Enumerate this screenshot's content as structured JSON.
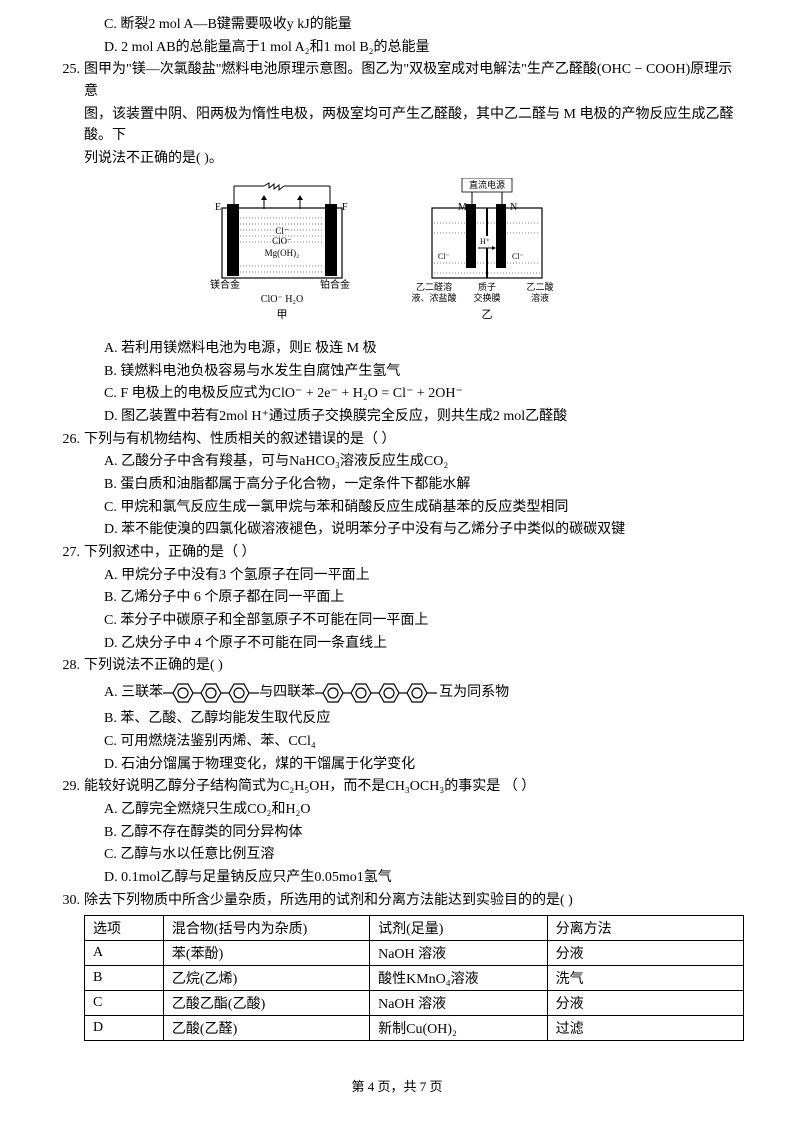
{
  "preQuestion": {
    "optC": "C. 断裂2 mol A—B键需要吸收y kJ的能量",
    "optD": "D. 2 mol AB的总能量高于1 mol A₂和1 mol B₂的总能量"
  },
  "q25": {
    "num": "25.",
    "text1": "图甲为\"镁—次氯酸盐\"燃料电池原理示意图。图乙为\"双极室成对电解法\"生产乙醛酸(OHC − COOH)原理示意",
    "text2": "图，该装置中阴、阳两极为惰性电极，两极室均可产生乙醛酸，其中乙二醛与 M 电极的产物反应生成乙醛酸。下",
    "text3": "列说法不正确的是(    )。",
    "diagram1": {
      "labels": {
        "E": "E",
        "F": "F",
        "Cl": "Cl⁻",
        "ClO": "ClO⁻",
        "MgOH": "Mg(OH)₂",
        "left": "镁合金",
        "right": "铂合金",
        "bottom": "ClO⁻   H₂O",
        "caption": "甲"
      }
    },
    "diagram2": {
      "labels": {
        "top": "直流电源",
        "M": "M",
        "N": "N",
        "H": "H⁺",
        "Cl": "Cl⁻",
        "ClR": "Cl⁻",
        "l1": "乙二醛溶",
        "l1b": "液、浓盐酸",
        "l2": "质子",
        "l2b": "交换膜",
        "l3": "乙二酸",
        "l3b": "溶液",
        "caption": "乙"
      }
    },
    "optA": "A. 若利用镁燃料电池为电源，则E 极连 M 极",
    "optB": "B. 镁燃料电池负极容易与水发生自腐蚀产生氢气",
    "optC": "C. F 电极上的电极反应式为ClO⁻ + 2e⁻ + H₂O = Cl⁻ + 2OH⁻",
    "optD": "D. 图乙装置中若有2mol H⁺通过质子交换膜完全反应，则共生成2 mol乙醛酸"
  },
  "q26": {
    "num": "26.",
    "text": "下列与有机物结构、性质相关的叙述错误的是（  ）",
    "optA": "A. 乙酸分子中含有羧基，可与NaHCO₃溶液反应生成CO₂",
    "optB": "B. 蛋白质和油脂都属于高分子化合物，一定条件下都能水解",
    "optC": "C. 甲烷和氯气反应生成一氯甲烷与苯和硝酸反应生成硝基苯的反应类型相同",
    "optD": "D. 苯不能使溴的四氯化碳溶液褪色，说明苯分子中没有与乙烯分子中类似的碳碳双键"
  },
  "q27": {
    "num": "27.",
    "text": "下列叙述中，正确的是（  ）",
    "optA": "A. 甲烷分子中没有3 个氢原子在同一平面上",
    "optB": "B. 乙烯分子中 6 个原子都在同一平面上",
    "optC": "C. 苯分子中碳原子和全部氢原子不可能在同一平面上",
    "optD": "D. 乙炔分子中 4 个原子不可能在同一条直线上"
  },
  "q28": {
    "num": "28.",
    "text": "下列说法不正确的是(  )",
    "optA_pre": "A. 三联苯",
    "optA_mid": "与四联苯",
    "optA_post": " 互为同系物",
    "optB": "B. 苯、乙酸、乙醇均能发生取代反应",
    "optC": "C. 可用燃烧法鉴别丙烯、苯、CCl₄",
    "optD": "D. 石油分馏属于物理变化，煤的干馏属于化学变化"
  },
  "q29": {
    "num": "29.",
    "text": "能较好说明乙醇分子结构简式为C₂H₅OH，而不是CH₃OCH₃的事实是 （  ）",
    "optA": "A. 乙醇完全燃烧只生成CO₂和H₂O",
    "optB": "B. 乙醇不存在醇类的同分异构体",
    "optC": "C. 乙醇与水以任意比例互溶",
    "optD": "D. 0.1mol乙醇与足量钠反应只产生0.05mo1氢气"
  },
  "q30": {
    "num": "30.",
    "text": "除去下列物质中所含少量杂质，所选用的试剂和分离方法能达到实验目的的是(  )",
    "table": {
      "headers": [
        "选项",
        "混合物(括号内为杂质)",
        "试剂(足量)",
        "分离方法"
      ],
      "widths": [
        80,
        210,
        180,
        200
      ],
      "rows": [
        [
          "A",
          "苯(苯酚)",
          "NaOH 溶液",
          "分液"
        ],
        [
          "B",
          "乙烷(乙烯)",
          "酸性KMnO₄溶液",
          "洗气"
        ],
        [
          "C",
          "乙酸乙酯(乙酸)",
          "NaOH 溶液",
          "分液"
        ],
        [
          "D",
          "乙酸(乙醛)",
          "新制Cu(OH)₂",
          "过滤"
        ]
      ]
    }
  },
  "footer": "第 4 页，共 7 页"
}
